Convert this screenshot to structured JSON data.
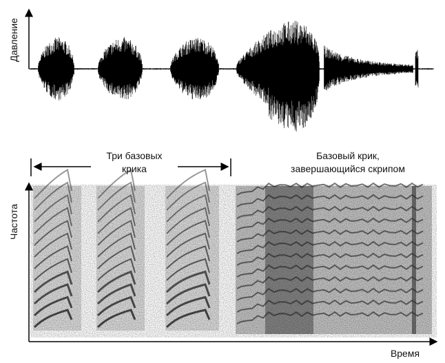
{
  "waveform": {
    "ylabel": "Давление"
  },
  "annotations": {
    "group1_line1": "Три базовых",
    "group1_line2": "крика",
    "group2_line1": "Базовый крик,",
    "group2_line2": "завершающийся скрипом"
  },
  "spectrogram": {
    "ylabel": "Частота",
    "xlabel": "Время"
  },
  "colors": {
    "ink": "#000000",
    "spectrogram_gray": "#8a8a8a"
  }
}
